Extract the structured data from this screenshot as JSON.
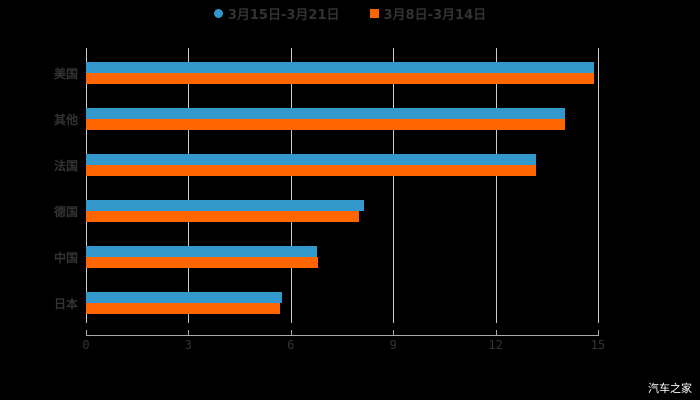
{
  "chart_data": {
    "type": "bar",
    "orientation": "horizontal",
    "title": "",
    "categories": [
      "美国",
      "其他",
      "法国",
      "德国",
      "中国",
      "日本"
    ],
    "series": [
      {
        "name": "3月15日-3月21日",
        "color": "#3399cc",
        "values": [
          14.88,
          14.03,
          13.18,
          8.15,
          6.77,
          5.74
        ]
      },
      {
        "name": "3月8日-3月14日",
        "color": "#ff6600",
        "values": [
          14.88,
          14.03,
          13.18,
          8.0,
          6.8,
          5.68
        ]
      }
    ],
    "xlabel": "",
    "ylabel": "",
    "xlim": [
      0,
      15
    ],
    "xticks": [
      "0",
      "3",
      "6",
      "9",
      "12",
      "15"
    ],
    "grid": true,
    "legend_position": "top"
  },
  "legend": {
    "series1": "3月15日-3月21日",
    "series2": "3月8日-3月14日"
  },
  "watermark": "汽车之家"
}
